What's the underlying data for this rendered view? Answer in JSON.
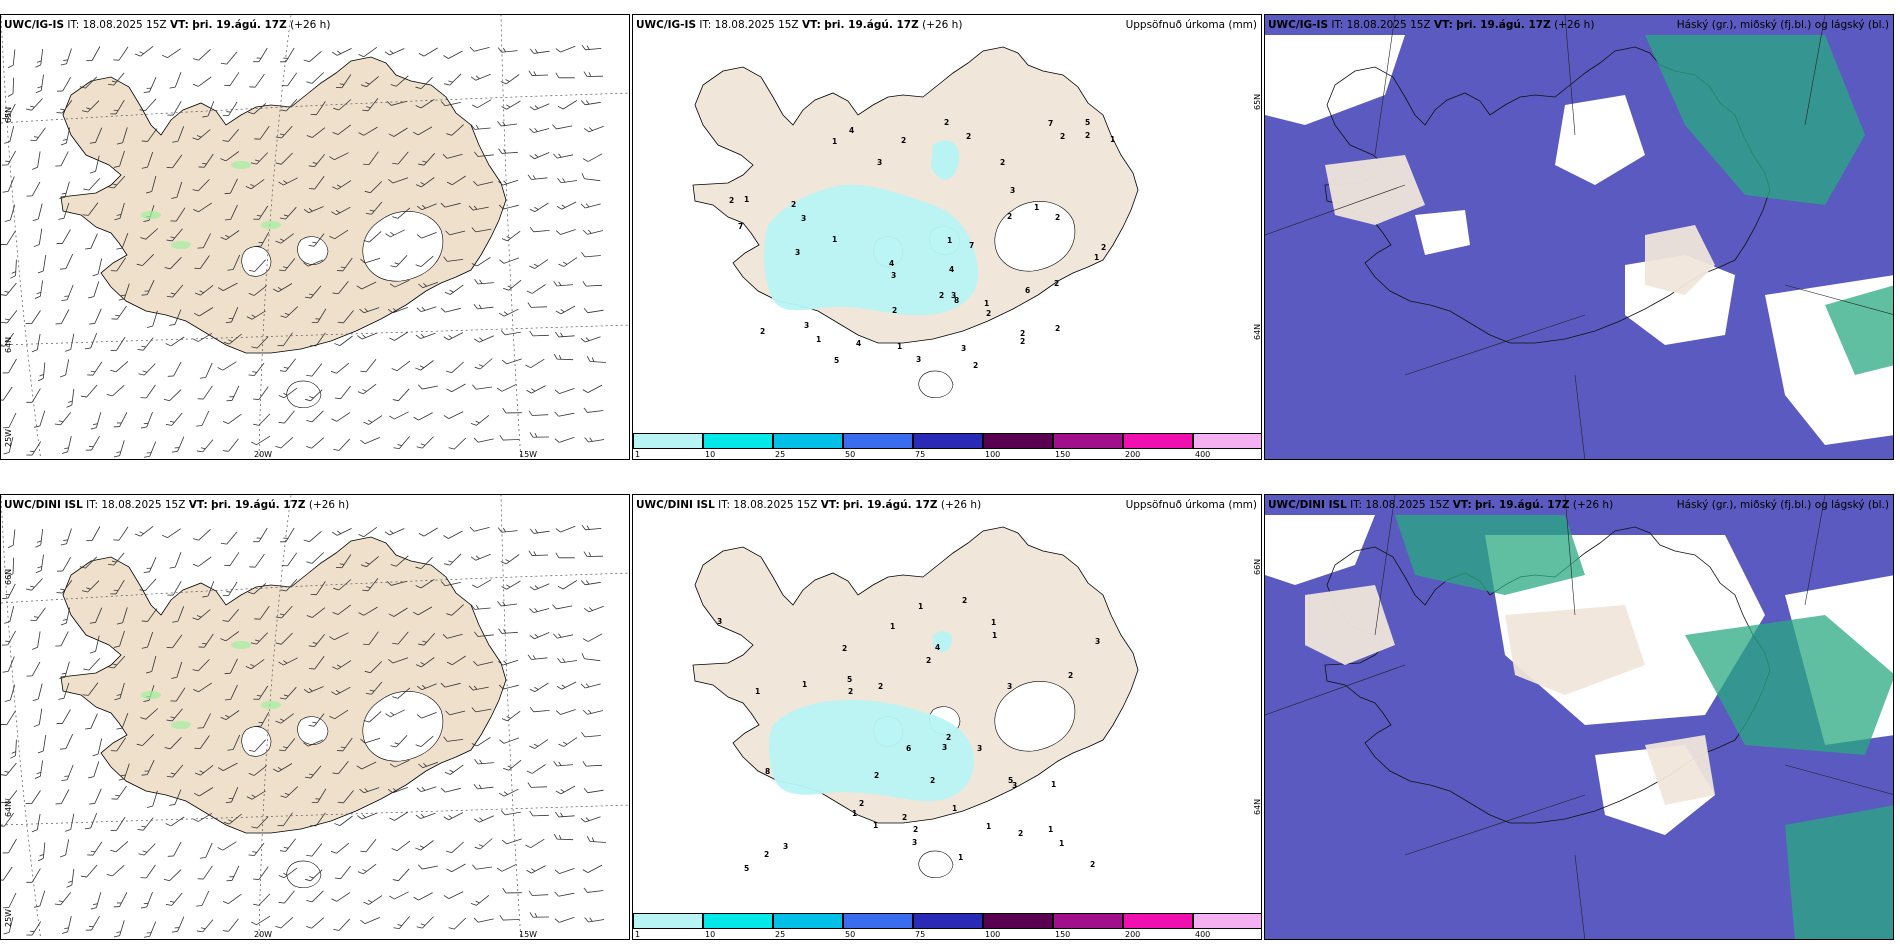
{
  "rows": [
    {
      "model": "UWC/IG-IS",
      "it_label": "IT:",
      "it_value": "18.08.2025 15Z",
      "vt_label": "VT:",
      "vt_value": "þri. 19.ágú. 17Z",
      "lead": "(+26 h)"
    },
    {
      "model": "UWC/DINI ISL",
      "it_label": "IT:",
      "it_value": "18.08.2025 15Z",
      "vt_label": "VT:",
      "vt_value": "þri. 19.ágú. 17Z",
      "lead": "(+26 h)"
    }
  ],
  "panel_titles": {
    "precip": "Uppsöfnuð úrkoma (mm)",
    "clouds": "Háský (gr.), miðský (fj.bl.) og lágský (bl.)"
  },
  "grid_labels": {
    "lat_65": "65N",
    "lat_64": "64N",
    "lat_66": "66N",
    "lon_20": "20W",
    "lon_15": "15W",
    "lon_25": "25W"
  },
  "colorbar": {
    "ticks": [
      "1",
      "10",
      "25",
      "50",
      "75",
      "100",
      "150",
      "200",
      "400"
    ],
    "colors": [
      "#b8f4f4",
      "#00e8e8",
      "#00c0e8",
      "#3a6cf0",
      "#2a2ab8",
      "#5a0050",
      "#a0108a",
      "#f010b0",
      "#f4b0f0"
    ]
  },
  "colors": {
    "land": "#f0e6da",
    "land_wind": "#efe0cc",
    "precip_light": "#b8f4f4",
    "cloud_low": "#5a5ac0",
    "cloud_high": "#2aaa80"
  },
  "precip_values": {
    "top": [
      "2",
      "1",
      "3",
      "2",
      "1",
      "3",
      "1",
      "1",
      "3",
      "1",
      "2",
      "2",
      "4",
      "3",
      "2",
      "7",
      "7",
      "2",
      "6",
      "2",
      "2",
      "8",
      "5",
      "2",
      "7",
      "3",
      "3",
      "3",
      "3",
      "3",
      "2",
      "5",
      "2",
      "4",
      "4",
      "1",
      "2",
      "1",
      "2",
      "1",
      "2",
      "1",
      "1",
      "2",
      "2",
      "2",
      "2",
      "2",
      "4",
      "2"
    ],
    "bottom": [
      "2",
      "1",
      "2",
      "2",
      "1",
      "2",
      "1",
      "1",
      "2",
      "1",
      "2",
      "2",
      "1",
      "1",
      "1",
      "5",
      "5",
      "8",
      "6",
      "3",
      "3",
      "3",
      "3",
      "3",
      "3",
      "1",
      "2",
      "2",
      "2",
      "1",
      "1",
      "2",
      "4",
      "5",
      "3",
      "1",
      "2",
      "3",
      "1",
      "2",
      "1",
      "2",
      "2"
    ]
  }
}
